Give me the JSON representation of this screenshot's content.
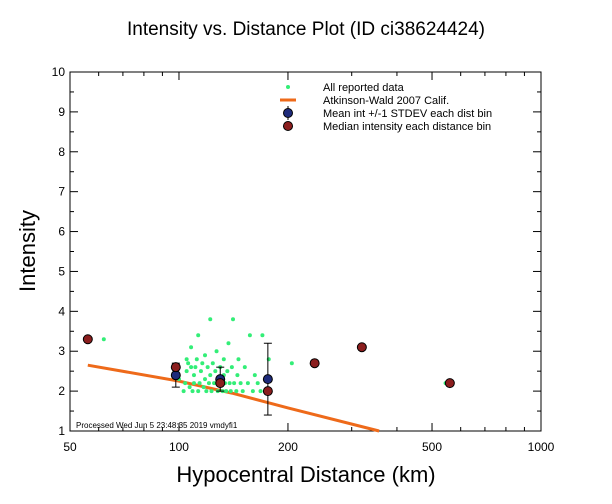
{
  "chart_data": {
    "type": "scatter",
    "title": "Intensity vs. Distance Plot (ID ci38624424)",
    "xlabel": "Hypocentral Distance (km)",
    "ylabel": "Intensity",
    "xscale": "log",
    "xlim": [
      50,
      1000
    ],
    "ylim": [
      1,
      10
    ],
    "x_ticks": [
      50,
      100,
      200,
      500,
      1000
    ],
    "y_ticks": [
      1,
      2,
      3,
      4,
      5,
      6,
      7,
      8,
      9,
      10
    ],
    "grid": false,
    "legend_position": "top-right",
    "footnote": "Processed Wed Jun  5 23:48:35 2019 vmdyfi1",
    "colors": {
      "reported": "#33ee77",
      "model": "#ee6a1a",
      "mean": "#1e2a7a",
      "median": "#8b1e1e"
    },
    "legend": [
      {
        "key": "reported",
        "label": "All reported data"
      },
      {
        "key": "model",
        "label": "Atkinson-Wald 2007 Calif."
      },
      {
        "key": "mean",
        "label": "Mean int +/-1 STDEV each dist bin"
      },
      {
        "key": "median",
        "label": "Median intensity each distance bin"
      }
    ],
    "series": [
      {
        "key": "reported",
        "name": "All reported data",
        "points": [
          [
            56,
            3.3
          ],
          [
            62,
            3.3
          ],
          [
            97,
            2.6
          ],
          [
            99,
            2.4
          ],
          [
            100,
            2.3
          ],
          [
            103,
            2.0
          ],
          [
            104,
            2.2
          ],
          [
            105,
            2.5
          ],
          [
            105,
            2.8
          ],
          [
            106,
            2.7
          ],
          [
            107,
            2.1
          ],
          [
            108,
            2.6
          ],
          [
            108,
            3.1
          ],
          [
            109,
            2.0
          ],
          [
            110,
            2.2
          ],
          [
            110,
            2.4
          ],
          [
            111,
            2.6
          ],
          [
            112,
            2.8
          ],
          [
            113,
            2.0
          ],
          [
            113,
            3.4
          ],
          [
            114,
            2.2
          ],
          [
            115,
            2.5
          ],
          [
            116,
            2.7
          ],
          [
            117,
            2.1
          ],
          [
            118,
            2.3
          ],
          [
            118,
            2.9
          ],
          [
            119,
            2.0
          ],
          [
            120,
            2.6
          ],
          [
            121,
            2.2
          ],
          [
            122,
            2.4
          ],
          [
            122,
            3.8
          ],
          [
            123,
            2.0
          ],
          [
            124,
            2.7
          ],
          [
            125,
            2.2
          ],
          [
            126,
            2.5
          ],
          [
            127,
            3.0
          ],
          [
            128,
            2.0
          ],
          [
            129,
            2.3
          ],
          [
            130,
            2.6
          ],
          [
            131,
            2.2
          ],
          [
            132,
            2.0
          ],
          [
            133,
            2.4
          ],
          [
            133,
            2.8
          ],
          [
            134,
            2.2
          ],
          [
            135,
            2.0
          ],
          [
            136,
            2.5
          ],
          [
            137,
            3.2
          ],
          [
            138,
            2.2
          ],
          [
            139,
            2.0
          ],
          [
            140,
            2.6
          ],
          [
            141,
            3.8
          ],
          [
            142,
            2.2
          ],
          [
            144,
            2.0
          ],
          [
            145,
            2.4
          ],
          [
            146,
            2.8
          ],
          [
            148,
            2.2
          ],
          [
            150,
            2.0
          ],
          [
            152,
            2.6
          ],
          [
            155,
            2.2
          ],
          [
            157,
            3.4
          ],
          [
            160,
            2.0
          ],
          [
            162,
            2.4
          ],
          [
            165,
            2.2
          ],
          [
            168,
            2.0
          ],
          [
            170,
            3.4
          ],
          [
            175,
            2.3
          ],
          [
            177,
            2.8
          ],
          [
            205,
            2.7
          ],
          [
            545,
            2.2
          ]
        ]
      },
      {
        "key": "model",
        "name": "Atkinson-Wald 2007 Calif.",
        "points": [
          [
            56,
            2.65
          ],
          [
            100,
            2.25
          ],
          [
            140,
            1.95
          ],
          [
            200,
            1.58
          ],
          [
            357,
            1.0
          ]
        ]
      },
      {
        "key": "mean",
        "name": "Mean int +/-1 STDEV each dist bin",
        "points": [
          [
            98,
            2.4
          ],
          [
            130,
            2.3
          ],
          [
            176,
            2.3
          ]
        ],
        "error": [
          0.3,
          0.3,
          0.9
        ]
      },
      {
        "key": "median",
        "name": "Median intensity each distance bin",
        "points": [
          [
            56,
            3.3
          ],
          [
            98,
            2.6
          ],
          [
            130,
            2.2
          ],
          [
            176,
            2.0
          ],
          [
            237,
            2.7
          ],
          [
            320,
            3.1
          ],
          [
            560,
            2.2
          ]
        ]
      }
    ]
  }
}
